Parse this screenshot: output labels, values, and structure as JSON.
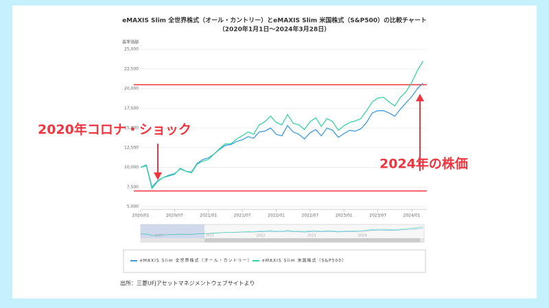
{
  "chart_data": {
    "type": "line",
    "title": "eMAXIS Slim 全世界株式（オール・カントリー）とeMAXIS Slim 米国株式（S&P500）の比較チャート",
    "subtitle": "（2020年1月1日～2024年3月28日）",
    "y_label": "基準価額",
    "x": [
      "2020/01",
      "2020/02",
      "2020/03",
      "2020/04",
      "2020/05",
      "2020/06",
      "2020/07",
      "2020/08",
      "2020/09",
      "2020/10",
      "2020/11",
      "2020/12",
      "2021/01",
      "2021/02",
      "2021/03",
      "2021/04",
      "2021/05",
      "2021/06",
      "2021/07",
      "2021/08",
      "2021/09",
      "2021/10",
      "2021/11",
      "2021/12",
      "2022/01",
      "2022/02",
      "2022/03",
      "2022/04",
      "2022/05",
      "2022/06",
      "2022/07",
      "2022/08",
      "2022/09",
      "2022/10",
      "2022/11",
      "2022/12",
      "2023/01",
      "2023/02",
      "2023/03",
      "2023/04",
      "2023/05",
      "2023/06",
      "2023/07",
      "2023/08",
      "2023/09",
      "2023/10",
      "2023/11",
      "2023/12",
      "2024/01",
      "2024/02",
      "2024/03"
    ],
    "xticks": [
      "2020/01",
      "2020/07",
      "2021/01",
      "2021/07",
      "2022/01",
      "2022/07",
      "2023/01",
      "2023/07",
      "2024/01"
    ],
    "series": [
      {
        "name": "eMAXIS Slim 全世界株式（オール・カントリー）",
        "color": "#3d9ae0",
        "values": [
          10000,
          10300,
          7500,
          8300,
          8700,
          9000,
          9200,
          9800,
          9500,
          9400,
          10500,
          11000,
          11200,
          11700,
          12300,
          12800,
          12900,
          13300,
          13500,
          13900,
          13700,
          14500,
          14600,
          15000,
          14200,
          14000,
          15300,
          14500,
          14200,
          13600,
          14400,
          14800,
          14000,
          15000,
          14700,
          13800,
          14300,
          14700,
          14600,
          14900,
          15700,
          16900,
          17200,
          17200,
          16900,
          16500,
          17400,
          18200,
          19000,
          20000,
          20700
        ]
      },
      {
        "name": "eMAXIS Slim 米国株式（S&P500）",
        "color": "#34d6a0",
        "values": [
          10000,
          10200,
          7300,
          8200,
          8700,
          8900,
          9100,
          9900,
          9500,
          9300,
          10400,
          10800,
          11000,
          11700,
          12400,
          13000,
          13000,
          13600,
          14000,
          14500,
          14200,
          15400,
          15800,
          16500,
          15700,
          15400,
          16700,
          15600,
          15400,
          14800,
          15800,
          16300,
          15200,
          16200,
          15800,
          14700,
          15300,
          15700,
          15900,
          16200,
          17200,
          18300,
          18800,
          18900,
          18300,
          17800,
          18900,
          19600,
          20800,
          22300,
          23500
        ]
      }
    ],
    "ylim": [
      5000,
      25000
    ],
    "yticks": [
      {
        "value": 5000,
        "label": "5,000"
      },
      {
        "value": 7500,
        "label": "7,500"
      },
      {
        "value": 10000,
        "label": "10,000"
      },
      {
        "value": 12500,
        "label": "12,500"
      },
      {
        "value": 15000,
        "label": "15,000"
      },
      {
        "value": 17500,
        "label": "17,500"
      },
      {
        "value": 20000,
        "label": "20,000"
      },
      {
        "value": 22500,
        "label": "22,500"
      },
      {
        "value": 25000,
        "label": "25,000"
      }
    ],
    "grid": true,
    "reference_lines": [
      20500,
      7000
    ],
    "annotations": [
      "2020年コロナ・ショック",
      "2024年の株価"
    ],
    "navigator_labels": [
      "2020",
      "2021",
      "2022",
      "2023",
      "2024"
    ],
    "source": "出所：三菱UFJアセットマネジメントウェブサイトより"
  }
}
